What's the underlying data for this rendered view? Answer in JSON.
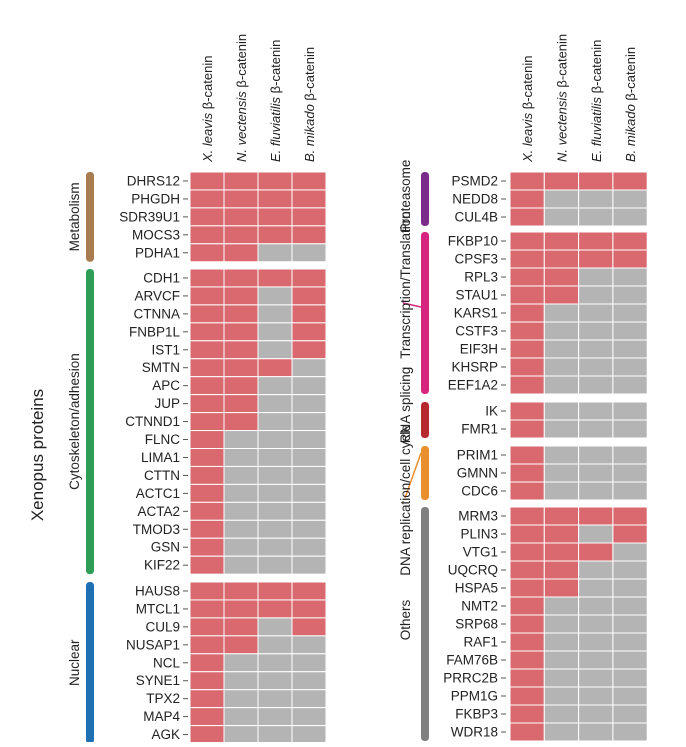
{
  "chart_data": {
    "type": "heatmap",
    "title": "",
    "ylabel": "Xenopus proteins",
    "columns": [
      {
        "species": "X. leavis",
        "suffix": " β-catenin"
      },
      {
        "species": "N. vectensis",
        "suffix": " β-catenin"
      },
      {
        "species": "E. fluviatilis",
        "suffix": " β-catenin"
      },
      {
        "species": "B. mikado",
        "suffix": " β-catenin"
      }
    ],
    "colors": {
      "present": "#d9696e",
      "absent": "#b4b4b4"
    },
    "panels": [
      {
        "groups": [
          {
            "name": "Metabolism",
            "color": "#a87c50",
            "rows": [
              {
                "gene": "DHRS12",
                "values": [
                  1,
                  1,
                  1,
                  1
                ]
              },
              {
                "gene": "PHGDH",
                "values": [
                  1,
                  1,
                  1,
                  1
                ]
              },
              {
                "gene": "SDR39U1",
                "values": [
                  1,
                  1,
                  1,
                  1
                ]
              },
              {
                "gene": "MOCS3",
                "values": [
                  1,
                  1,
                  1,
                  1
                ]
              },
              {
                "gene": "PDHA1",
                "values": [
                  1,
                  1,
                  0,
                  0
                ]
              }
            ]
          },
          {
            "name": "Cytoskeleton/adhesion",
            "color": "#2e9e57",
            "rows": [
              {
                "gene": "CDH1",
                "values": [
                  1,
                  1,
                  1,
                  1
                ]
              },
              {
                "gene": "ARVCF",
                "values": [
                  1,
                  1,
                  0,
                  1
                ]
              },
              {
                "gene": "CTNNA",
                "values": [
                  1,
                  1,
                  0,
                  1
                ]
              },
              {
                "gene": "FNBP1L",
                "values": [
                  1,
                  1,
                  0,
                  1
                ]
              },
              {
                "gene": "IST1",
                "values": [
                  1,
                  1,
                  0,
                  1
                ]
              },
              {
                "gene": "SMTN",
                "values": [
                  1,
                  1,
                  1,
                  0
                ]
              },
              {
                "gene": "APC",
                "values": [
                  1,
                  1,
                  0,
                  0
                ]
              },
              {
                "gene": "JUP",
                "values": [
                  1,
                  1,
                  0,
                  0
                ]
              },
              {
                "gene": "CTNND1",
                "values": [
                  1,
                  1,
                  0,
                  0
                ]
              },
              {
                "gene": "FLNC",
                "values": [
                  1,
                  0,
                  0,
                  0
                ]
              },
              {
                "gene": "LIMA1",
                "values": [
                  1,
                  0,
                  0,
                  0
                ]
              },
              {
                "gene": "CTTN",
                "values": [
                  1,
                  0,
                  0,
                  0
                ]
              },
              {
                "gene": "ACTC1",
                "values": [
                  1,
                  0,
                  0,
                  0
                ]
              },
              {
                "gene": "ACTA2",
                "values": [
                  1,
                  0,
                  0,
                  0
                ]
              },
              {
                "gene": "TMOD3",
                "values": [
                  1,
                  0,
                  0,
                  0
                ]
              },
              {
                "gene": "GSN",
                "values": [
                  1,
                  0,
                  0,
                  0
                ]
              },
              {
                "gene": "KIF22",
                "values": [
                  1,
                  0,
                  0,
                  0
                ]
              }
            ]
          },
          {
            "name": "Nuclear",
            "color": "#1f6fb3",
            "rows": [
              {
                "gene": "HAUS8",
                "values": [
                  1,
                  1,
                  1,
                  1
                ]
              },
              {
                "gene": "MTCL1",
                "values": [
                  1,
                  1,
                  1,
                  1
                ]
              },
              {
                "gene": "CUL9",
                "values": [
                  1,
                  1,
                  0,
                  1
                ]
              },
              {
                "gene": "NUSAP1",
                "values": [
                  1,
                  1,
                  0,
                  0
                ]
              },
              {
                "gene": "NCL",
                "values": [
                  1,
                  0,
                  0,
                  0
                ]
              },
              {
                "gene": "SYNE1",
                "values": [
                  1,
                  0,
                  0,
                  0
                ]
              },
              {
                "gene": "TPX2",
                "values": [
                  1,
                  0,
                  0,
                  0
                ]
              },
              {
                "gene": "MAP4",
                "values": [
                  1,
                  0,
                  0,
                  0
                ]
              },
              {
                "gene": "AGK",
                "values": [
                  1,
                  0,
                  0,
                  0
                ]
              }
            ]
          }
        ]
      },
      {
        "groups": [
          {
            "name": "Proteasome",
            "color": "#7b2c8a",
            "rows": [
              {
                "gene": "PSMD2",
                "values": [
                  1,
                  1,
                  1,
                  1
                ]
              },
              {
                "gene": "NEDD8",
                "values": [
                  1,
                  0,
                  0,
                  0
                ]
              },
              {
                "gene": "CUL4B",
                "values": [
                  1,
                  0,
                  0,
                  0
                ]
              }
            ]
          },
          {
            "name": "Transcription/Translation",
            "color": "#d6247f",
            "rows": [
              {
                "gene": "FKBP10",
                "values": [
                  1,
                  1,
                  1,
                  1
                ]
              },
              {
                "gene": "CPSF3",
                "values": [
                  1,
                  1,
                  1,
                  1
                ]
              },
              {
                "gene": "RPL3",
                "values": [
                  1,
                  1,
                  0,
                  0
                ]
              },
              {
                "gene": "STAU1",
                "values": [
                  1,
                  1,
                  0,
                  0
                ]
              },
              {
                "gene": "KARS1",
                "values": [
                  1,
                  0,
                  0,
                  0
                ]
              },
              {
                "gene": "CSTF3",
                "values": [
                  1,
                  0,
                  0,
                  0
                ]
              },
              {
                "gene": "EIF3H",
                "values": [
                  1,
                  0,
                  0,
                  0
                ]
              },
              {
                "gene": "KHSRP",
                "values": [
                  1,
                  0,
                  0,
                  0
                ]
              },
              {
                "gene": "EEF1A2",
                "values": [
                  1,
                  0,
                  0,
                  0
                ]
              }
            ]
          },
          {
            "name": "RNA splicing",
            "color": "#b5292f",
            "rows": [
              {
                "gene": "IK",
                "values": [
                  1,
                  0,
                  0,
                  0
                ]
              },
              {
                "gene": "FMR1",
                "values": [
                  1,
                  0,
                  0,
                  0
                ]
              }
            ]
          },
          {
            "name": "DNA replication/cell cycle",
            "color": "#ea8f2e",
            "rows": [
              {
                "gene": "PRIM1",
                "values": [
                  1,
                  0,
                  0,
                  0
                ]
              },
              {
                "gene": "GMNN",
                "values": [
                  1,
                  0,
                  0,
                  0
                ]
              },
              {
                "gene": "CDC6",
                "values": [
                  1,
                  0,
                  0,
                  0
                ]
              }
            ]
          },
          {
            "name": "Others",
            "color": "#808080",
            "rows": [
              {
                "gene": "MRM3",
                "values": [
                  1,
                  1,
                  1,
                  1
                ]
              },
              {
                "gene": "PLIN3",
                "values": [
                  1,
                  1,
                  0,
                  1
                ]
              },
              {
                "gene": "VTG1",
                "values": [
                  1,
                  1,
                  1,
                  0
                ]
              },
              {
                "gene": "UQCRQ",
                "values": [
                  1,
                  1,
                  0,
                  0
                ]
              },
              {
                "gene": "HSPA5",
                "values": [
                  1,
                  1,
                  0,
                  0
                ]
              },
              {
                "gene": "NMT2",
                "values": [
                  1,
                  0,
                  0,
                  0
                ]
              },
              {
                "gene": "SRP68",
                "values": [
                  1,
                  0,
                  0,
                  0
                ]
              },
              {
                "gene": "RAF1",
                "values": [
                  1,
                  0,
                  0,
                  0
                ]
              },
              {
                "gene": "FAM76B",
                "values": [
                  1,
                  0,
                  0,
                  0
                ]
              },
              {
                "gene": "PRRC2B",
                "values": [
                  1,
                  0,
                  0,
                  0
                ]
              },
              {
                "gene": "PPM1G",
                "values": [
                  1,
                  0,
                  0,
                  0
                ]
              },
              {
                "gene": "FKBP3",
                "values": [
                  1,
                  0,
                  0,
                  0
                ]
              },
              {
                "gene": "WDR18",
                "values": [
                  1,
                  0,
                  0,
                  0
                ]
              }
            ]
          }
        ]
      }
    ]
  }
}
